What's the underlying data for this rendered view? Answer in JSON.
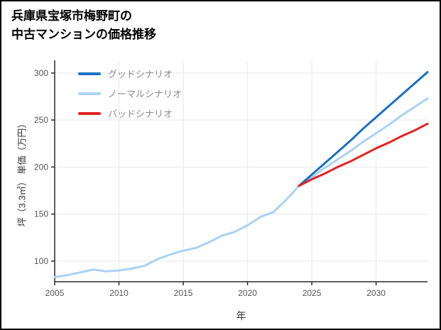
{
  "title": {
    "line1": "兵庫県宝塚市梅野町の",
    "line2": "中古マンションの価格推移"
  },
  "chart_data": {
    "type": "line",
    "title": "兵庫県宝塚市梅野町の中古マンションの価格推移",
    "xlabel": "年",
    "ylabel": "坪（3.3㎡） 単価（万円）",
    "xlim": [
      2005,
      2034
    ],
    "ylim": [
      78,
      312
    ],
    "xticks": [
      2005,
      2010,
      2015,
      2020,
      2025,
      2030
    ],
    "yticks": [
      100,
      150,
      200,
      250,
      300
    ],
    "grid": true,
    "legend_position": "top-left",
    "colors": {
      "good": "#1a6fc4",
      "normal": "#a9d2f3",
      "bad": "#e32222",
      "grid": "#e7e7e7",
      "axis": "#2a2a2a"
    },
    "series": [
      {
        "name": "グッドシナリオ",
        "color": "#1a6fc4",
        "width": 3,
        "in_legend": true,
        "x": [
          2024,
          2025,
          2026,
          2027,
          2028,
          2029,
          2030,
          2031,
          2032,
          2033,
          2034
        ],
        "y": [
          180,
          192,
          204,
          216,
          228,
          241,
          253,
          265,
          277,
          289,
          301
        ]
      },
      {
        "name": "ノーマルシナリオ",
        "color": "#a9d2f3",
        "width": 3,
        "in_legend": true,
        "x": [
          2005,
          2006,
          2007,
          2008,
          2009,
          2010,
          2011,
          2012,
          2013,
          2014,
          2015,
          2016,
          2017,
          2018,
          2019,
          2020,
          2021,
          2022,
          2023,
          2024,
          2025,
          2026,
          2027,
          2028,
          2029,
          2030,
          2031,
          2032,
          2033,
          2034
        ],
        "y": [
          83,
          85,
          88,
          91,
          89,
          90,
          92,
          95,
          102,
          107,
          111,
          114,
          120,
          127,
          131,
          138,
          147,
          152,
          165,
          180,
          189,
          199,
          208,
          217,
          227,
          236,
          245,
          255,
          264,
          273
        ]
      },
      {
        "name": "バッドシナリオ",
        "color": "#e32222",
        "width": 3,
        "in_legend": true,
        "x": [
          2024,
          2025,
          2026,
          2027,
          2028,
          2029,
          2030,
          2031,
          2032,
          2033,
          2034
        ],
        "y": [
          180,
          187,
          193,
          200,
          206,
          213,
          220,
          226,
          233,
          239,
          246
        ]
      }
    ]
  }
}
